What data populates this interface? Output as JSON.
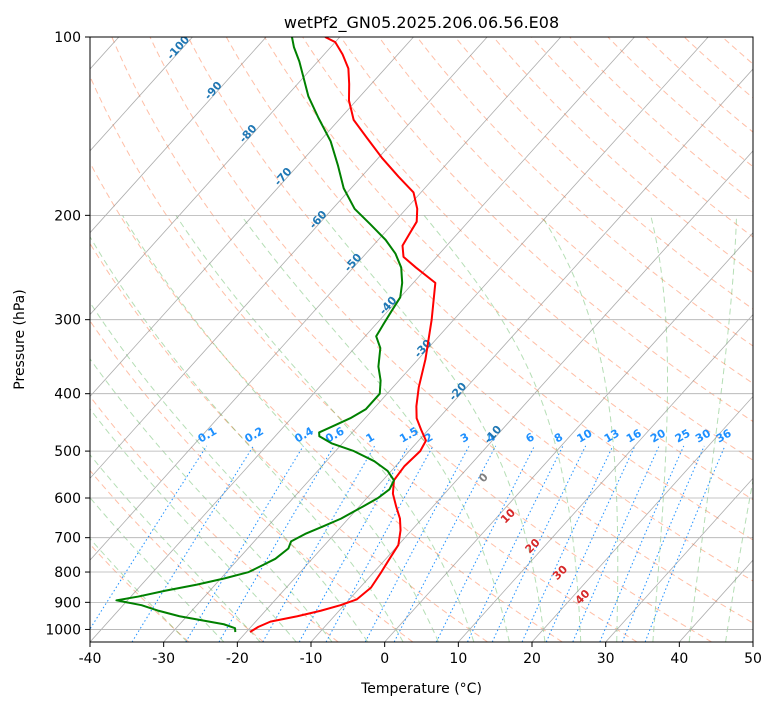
{
  "chart_data": {
    "type": "line",
    "title": "wetPf2_GN05.2025.206.06.56.E08",
    "xlabel": "Temperature (°C)",
    "ylabel": "Pressure (hPa)",
    "xlim": [
      -40,
      50
    ],
    "ylim": [
      1050,
      100
    ],
    "y_scale": "log",
    "grid": true,
    "x_ticks": [
      -40,
      -30,
      -20,
      -10,
      0,
      10,
      20,
      30,
      40,
      50
    ],
    "y_ticks": [
      100,
      200,
      300,
      400,
      500,
      600,
      700,
      800,
      900,
      1000
    ],
    "series": [
      {
        "role": "temperature",
        "color": "#ff0000",
        "points": [
          [
            -19.5,
            1010
          ],
          [
            -19.0,
            990
          ],
          [
            -18.0,
            970
          ],
          [
            -15.0,
            950
          ],
          [
            -12.5,
            930
          ],
          [
            -10.5,
            910
          ],
          [
            -9.0,
            890
          ],
          [
            -8.5,
            850
          ],
          [
            -9.0,
            800
          ],
          [
            -9.5,
            760
          ],
          [
            -10.0,
            720
          ],
          [
            -11.5,
            680
          ],
          [
            -13.0,
            650
          ],
          [
            -15.0,
            620
          ],
          [
            -17.0,
            590
          ],
          [
            -18.5,
            560
          ],
          [
            -18.8,
            530
          ],
          [
            -18.5,
            500
          ],
          [
            -19.0,
            480
          ],
          [
            -21.0,
            460
          ],
          [
            -23.0,
            440
          ],
          [
            -24.5,
            420
          ],
          [
            -26.5,
            390
          ],
          [
            -29.0,
            350
          ],
          [
            -33.0,
            300
          ],
          [
            -37.0,
            260
          ],
          [
            -41.5,
            245
          ],
          [
            -44.5,
            235
          ],
          [
            -46.0,
            225
          ],
          [
            -46.5,
            215
          ],
          [
            -47.0,
            205
          ],
          [
            -48.5,
            195
          ],
          [
            -51.0,
            183
          ],
          [
            -55.0,
            172
          ],
          [
            -59.5,
            160
          ],
          [
            -64.0,
            148
          ],
          [
            -68.0,
            138
          ],
          [
            -71.0,
            128
          ],
          [
            -73.0,
            120
          ],
          [
            -75.0,
            113
          ],
          [
            -77.5,
            107
          ],
          [
            -80.0,
            102
          ],
          [
            -82.0,
            100
          ]
        ]
      },
      {
        "role": "dewpoint",
        "color": "#008000",
        "points": [
          [
            -21.5,
            1010
          ],
          [
            -22.0,
            995
          ],
          [
            -24.0,
            980
          ],
          [
            -27.5,
            965
          ],
          [
            -31.0,
            950
          ],
          [
            -34.5,
            930
          ],
          [
            -37.5,
            910
          ],
          [
            -41.5,
            893
          ],
          [
            -39.0,
            880
          ],
          [
            -36.0,
            860
          ],
          [
            -32.5,
            840
          ],
          [
            -29.5,
            820
          ],
          [
            -27.0,
            800
          ],
          [
            -26.0,
            780
          ],
          [
            -25.0,
            760
          ],
          [
            -24.5,
            730
          ],
          [
            -25.0,
            710
          ],
          [
            -24.0,
            690
          ],
          [
            -22.5,
            670
          ],
          [
            -21.0,
            650
          ],
          [
            -19.5,
            620
          ],
          [
            -18.5,
            600
          ],
          [
            -18.0,
            580
          ],
          [
            -18.5,
            560
          ],
          [
            -20.5,
            540
          ],
          [
            -23.5,
            520
          ],
          [
            -27.5,
            500
          ],
          [
            -31.5,
            485
          ],
          [
            -34.0,
            472
          ],
          [
            -34.5,
            465
          ],
          [
            -33.5,
            455
          ],
          [
            -32.0,
            440
          ],
          [
            -31.0,
            425
          ],
          [
            -31.0,
            400
          ],
          [
            -32.5,
            380
          ],
          [
            -34.5,
            360
          ],
          [
            -36.5,
            335
          ],
          [
            -38.5,
            320
          ],
          [
            -39.0,
            305
          ],
          [
            -39.5,
            290
          ],
          [
            -40.0,
            275
          ],
          [
            -41.5,
            260
          ],
          [
            -43.5,
            245
          ],
          [
            -46.0,
            232
          ],
          [
            -49.0,
            220
          ],
          [
            -53.0,
            207
          ],
          [
            -57.0,
            195
          ],
          [
            -61.0,
            180
          ],
          [
            -64.5,
            165
          ],
          [
            -68.5,
            150
          ],
          [
            -73.0,
            137
          ],
          [
            -77.0,
            126
          ],
          [
            -80.0,
            117
          ],
          [
            -82.5,
            110
          ],
          [
            -85.0,
            104
          ],
          [
            -86.5,
            100
          ]
        ]
      }
    ],
    "isotherm_labels": [
      "-100",
      "-90",
      "-80",
      "-70",
      "-60",
      "-50",
      "-40",
      "-30",
      "-20",
      "-10"
    ],
    "mixing_ratio_labels": [
      "0.1",
      "0.2",
      "0.4",
      "0.6",
      "1",
      "1.5",
      "2",
      "3",
      "4",
      "6",
      "8",
      "10",
      "13",
      "16",
      "20",
      "25",
      "30",
      "36"
    ],
    "moist_adiabat_labels": [
      "0",
      "10",
      "20",
      "30",
      "40"
    ],
    "colors": {
      "isotherm_labels": "#1f77b4",
      "mixing_ratio": "#1e90ff",
      "moist_adiabat_labels": "#d62728",
      "zero_label": "#808080",
      "dry_adiabat": "#ff7f50",
      "moist_adiabat": "#2ca02c",
      "skewed_isotherm": "#808080"
    }
  }
}
